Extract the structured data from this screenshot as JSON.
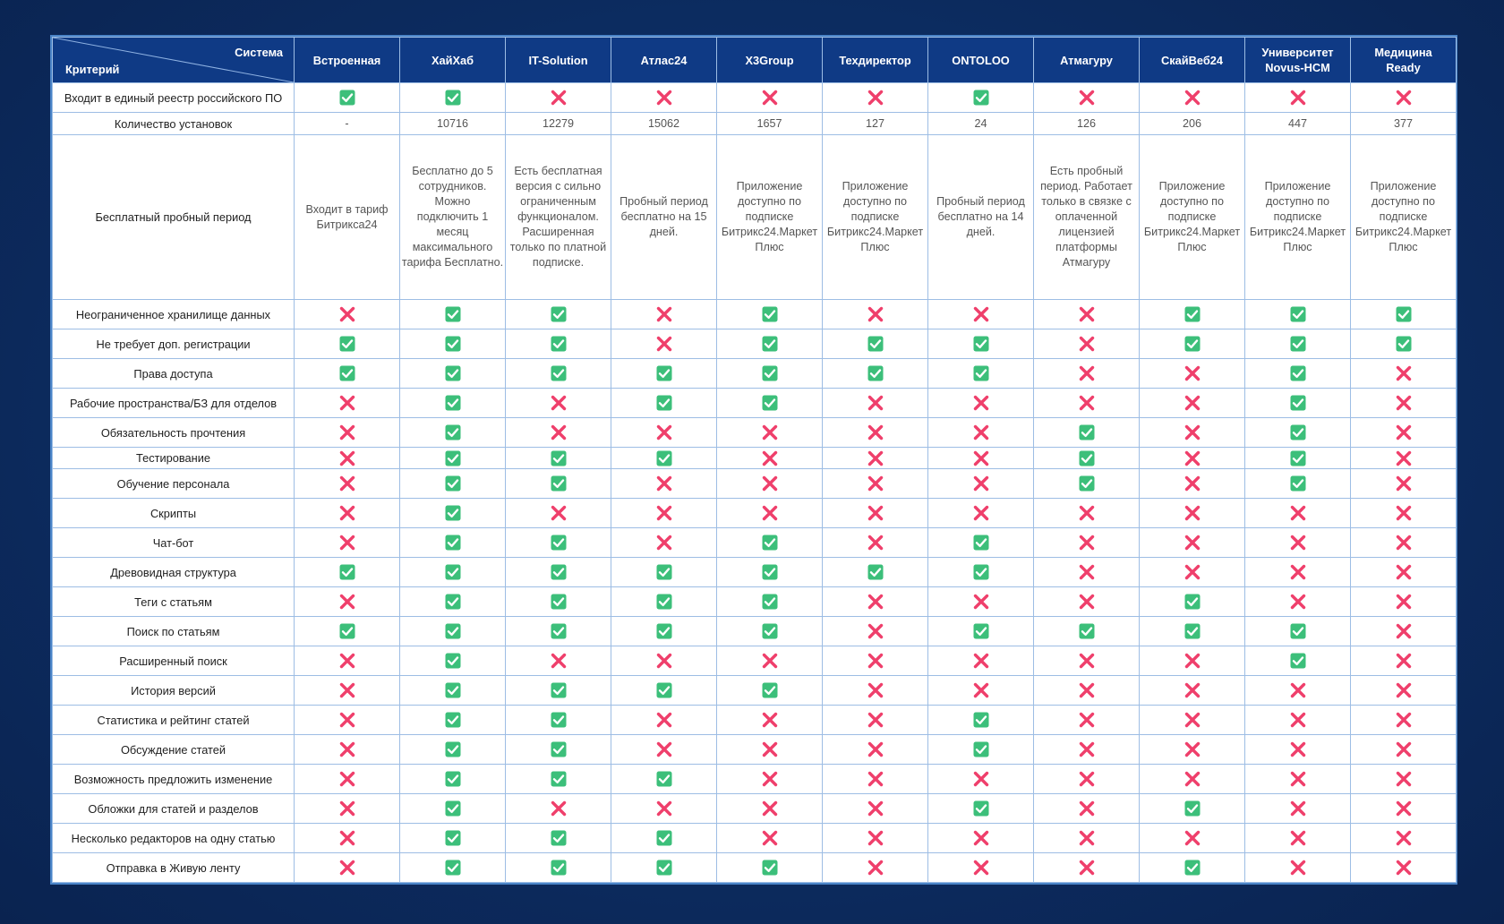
{
  "table": {
    "header": {
      "system_label": "Система",
      "criterion_label": "Критерий",
      "systems": [
        "Встроенная",
        "ХайХаб",
        "IT-Solution",
        "Атлас24",
        "X3Group",
        "Техдиректор",
        "ONTOLOO",
        "Атмагуру",
        "СкайВеб24",
        "Университет\nNovus-HCM",
        "Медицина\nReady"
      ]
    },
    "rows": [
      {
        "criterion": "Входит в единый реестр российского ПО",
        "type": "mark",
        "values": [
          1,
          1,
          0,
          0,
          0,
          0,
          1,
          0,
          0,
          0,
          0
        ]
      },
      {
        "criterion": "Количество установок",
        "type": "text",
        "values": [
          "-",
          "10716",
          "12279",
          "15062",
          "1657",
          "127",
          "24",
          "126",
          "206",
          "447",
          "377"
        ]
      },
      {
        "criterion": "Бесплатный пробный период",
        "type": "text",
        "values": [
          "Входит в тариф\nБитрикса24",
          "Бесплатно до 5\nсотрудников.\nМожно\nподключить 1\nмесяц\nмаксимального\nтарифа Бесплатно.",
          "Есть бесплатная\nверсия с сильно\nограниченным\nфункционалом.\nРасширенная\nтолько по платной\nподписке.",
          "Пробный период\nбесплатно на 15\nдней.",
          "Приложение\nдоступно по\nподписке\nБитрикс24.Маркет\nПлюс",
          "Приложение\nдоступно по\nподписке\nБитрикс24.Маркет\nПлюс",
          "Пробный период\nбесплатно на 14\nдней.",
          "Есть пробный\nпериод. Работает\nтолько в связке с\nоплаченной\nлицензией\nплатформы\nАтмагуру",
          "Приложение\nдоступно по\nподписке\nБитрикс24.Маркет\nПлюс",
          "Приложение\nдоступно по\nподписке\nБитрикс24.Маркет\nПлюс",
          "Приложение\nдоступно по\nподписке\nБитрикс24.Маркет\nПлюс"
        ]
      },
      {
        "criterion": "Неограниченное хранилище данных",
        "type": "mark",
        "values": [
          0,
          1,
          1,
          0,
          1,
          0,
          0,
          0,
          1,
          1,
          1
        ]
      },
      {
        "criterion": "Не требует доп. регистрации",
        "type": "mark",
        "values": [
          1,
          1,
          1,
          0,
          1,
          1,
          1,
          0,
          1,
          1,
          1
        ]
      },
      {
        "criterion": "Права доступа",
        "type": "mark",
        "values": [
          1,
          1,
          1,
          1,
          1,
          1,
          1,
          0,
          0,
          1,
          0
        ]
      },
      {
        "criterion": "Рабочие пространства/БЗ для отделов",
        "type": "mark",
        "values": [
          0,
          1,
          0,
          1,
          1,
          0,
          0,
          0,
          0,
          1,
          0
        ]
      },
      {
        "criterion": "Обязательность прочтения",
        "type": "mark",
        "values": [
          0,
          1,
          0,
          0,
          0,
          0,
          0,
          1,
          0,
          1,
          0
        ]
      },
      {
        "criterion": "Тестирование",
        "type": "mark",
        "values": [
          0,
          1,
          1,
          1,
          0,
          0,
          0,
          1,
          0,
          1,
          0
        ]
      },
      {
        "criterion": "Обучение персонала",
        "type": "mark",
        "values": [
          0,
          1,
          1,
          0,
          0,
          0,
          0,
          1,
          0,
          1,
          0
        ]
      },
      {
        "criterion": "Скрипты",
        "type": "mark",
        "values": [
          0,
          1,
          0,
          0,
          0,
          0,
          0,
          0,
          0,
          0,
          0
        ]
      },
      {
        "criterion": "Чат-бот",
        "type": "mark",
        "values": [
          0,
          1,
          1,
          0,
          1,
          0,
          1,
          0,
          0,
          0,
          0
        ]
      },
      {
        "criterion": "Древовидная структура",
        "type": "mark",
        "values": [
          1,
          1,
          1,
          1,
          1,
          1,
          1,
          0,
          0,
          0,
          0
        ]
      },
      {
        "criterion": "Теги с статьям",
        "type": "mark",
        "values": [
          0,
          1,
          1,
          1,
          1,
          0,
          0,
          0,
          1,
          0,
          0
        ]
      },
      {
        "criterion": "Поиск по статьям",
        "type": "mark",
        "values": [
          1,
          1,
          1,
          1,
          1,
          0,
          1,
          1,
          1,
          1,
          0
        ]
      },
      {
        "criterion": "Расширенный поиск",
        "type": "mark",
        "values": [
          0,
          1,
          0,
          0,
          0,
          0,
          0,
          0,
          0,
          1,
          0
        ]
      },
      {
        "criterion": "История версий",
        "type": "mark",
        "values": [
          0,
          1,
          1,
          1,
          1,
          0,
          0,
          0,
          0,
          0,
          0
        ]
      },
      {
        "criterion": "Статистика и рейтинг статей",
        "type": "mark",
        "values": [
          0,
          1,
          1,
          0,
          0,
          0,
          1,
          0,
          0,
          0,
          0
        ]
      },
      {
        "criterion": "Обсуждение статей",
        "type": "mark",
        "values": [
          0,
          1,
          1,
          0,
          0,
          0,
          1,
          0,
          0,
          0,
          0
        ]
      },
      {
        "criterion": "Возможность предложить изменение",
        "type": "mark",
        "values": [
          0,
          1,
          1,
          1,
          0,
          0,
          0,
          0,
          0,
          0,
          0
        ]
      },
      {
        "criterion": "Обложки для статей и разделов",
        "type": "mark",
        "values": [
          0,
          1,
          0,
          0,
          0,
          0,
          1,
          0,
          1,
          0,
          0
        ]
      },
      {
        "criterion": "Несколько редакторов на одну статью",
        "type": "mark",
        "values": [
          0,
          1,
          1,
          1,
          0,
          0,
          0,
          0,
          0,
          0,
          0
        ]
      },
      {
        "criterion": "Отправка в Живую ленту",
        "type": "mark",
        "values": [
          0,
          1,
          1,
          1,
          1,
          0,
          0,
          0,
          1,
          0,
          0
        ]
      }
    ]
  },
  "icons": {
    "yes": "check-icon",
    "no": "cross-icon"
  },
  "colors": {
    "header_bg": "#0f3a85",
    "check": "#3cbf7a",
    "cross": "#ef3f6b",
    "grid": "#9dbde4"
  }
}
